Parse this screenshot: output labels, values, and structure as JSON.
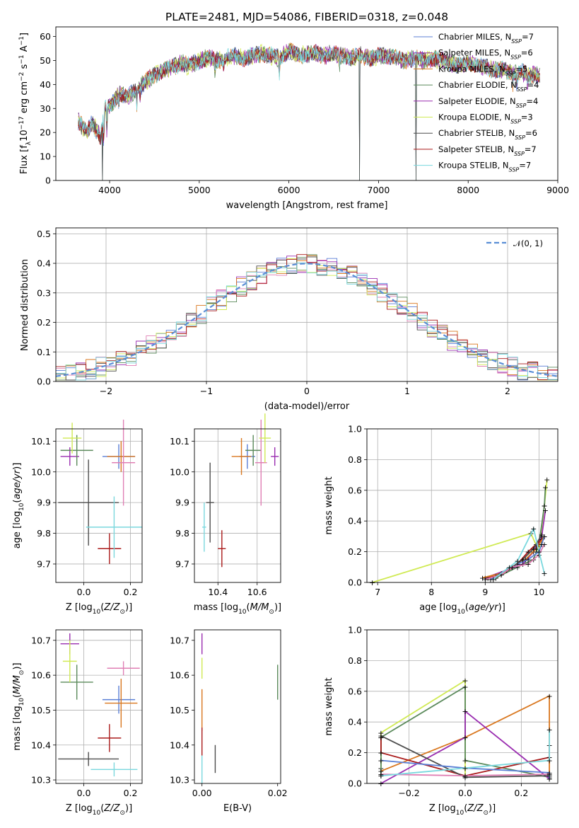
{
  "title": "PLATE=2481, MJD=54086, FIBERID=0318, z=0.048",
  "colors": {
    "Chabrier MILES": "#5b7fd6",
    "Salpeter MILES": "#9a2db0",
    "Kroupa MILES": "#d9771f",
    "Chabrier ELODIE": "#5b8a5b",
    "Salpeter ELODIE": "#9a2db0",
    "Kroupa ELODIE": "#d0ea54",
    "Chabrier STELIB": "#4d4d4d",
    "Salpeter STELIB": "#aa1a1a",
    "Kroupa STELIB": "#7ad8de",
    "Gaussian": "#5b8ed6",
    "Salpeter ELODIE panel": "#e07fb4"
  },
  "chart_data": [
    {
      "id": "spectrum",
      "type": "line",
      "title": "PLATE=2481, MJD=54086, FIBERID=0318, z=0.048",
      "xlabel": "wavelength [Angstrom, rest frame]",
      "ylabel": "Flux [f_λ10^-17 erg cm^-2 s^-1 A^-1]",
      "xlim": [
        3400,
        9000
      ],
      "ylim": [
        0,
        64
      ],
      "xticks": [
        "4000",
        "5000",
        "6000",
        "7000",
        "8000",
        "9000"
      ],
      "yticks": [
        "0",
        "10",
        "20",
        "30",
        "40",
        "50",
        "60"
      ],
      "grid": false,
      "legend_position": "top-right",
      "series": [
        {
          "name": "Chabrier MILES, N_SSP=7",
          "color": "#5b7fd6"
        },
        {
          "name": "Salpeter MILES, N_SSP=6",
          "color": "#9a2db0"
        },
        {
          "name": "Kroupa MILES, N_SSP=5",
          "color": "#d9771f"
        },
        {
          "name": "Chabrier ELODIE, N_SSP=4",
          "color": "#5b8a5b"
        },
        {
          "name": "Salpeter ELODIE, N_SSP=4",
          "color": "#9a2db0"
        },
        {
          "name": "Kroupa ELODIE, N_SSP=3",
          "color": "#d0ea54"
        },
        {
          "name": "Chabrier STELIB, N_SSP=6",
          "color": "#4d4d4d"
        },
        {
          "name": "Salpeter STELIB, N_SSP=7",
          "color": "#aa1a1a"
        },
        {
          "name": "Kroupa STELIB, N_SSP=7",
          "color": "#7ad8de"
        }
      ],
      "continuum": {
        "x": [
          3650,
          3700,
          3750,
          3800,
          3850,
          3900,
          3950,
          4000,
          4100,
          4200,
          4300,
          4400,
          4500,
          4600,
          4700,
          4800,
          4900,
          5000,
          5100,
          5200,
          5300,
          5400,
          5500,
          5600,
          5700,
          5800,
          5900,
          6000,
          6100,
          6200,
          6300,
          6400,
          6500,
          6600,
          6700,
          6800,
          6900,
          7000,
          7100,
          7200,
          7300,
          7400,
          7500,
          7600,
          7700,
          7800,
          7900,
          8000,
          8100,
          8200,
          8300,
          8400,
          8500,
          8600,
          8700,
          8800
        ],
        "y": [
          25,
          22,
          20,
          24,
          21,
          18,
          30,
          31,
          36,
          35,
          38,
          41,
          44,
          46,
          47,
          49,
          48,
          50,
          51,
          50,
          51,
          52,
          51,
          52,
          53,
          52,
          51,
          54,
          52,
          53,
          53,
          52,
          53,
          52,
          51,
          52,
          51,
          52,
          52,
          51,
          50,
          51,
          50,
          51,
          50,
          49,
          48,
          49,
          48,
          47,
          46,
          46,
          45,
          45,
          44,
          44
        ]
      },
      "dips": [
        {
          "x": 3920,
          "ylow": 0
        },
        {
          "x": 6790,
          "ylow": 0
        },
        {
          "x": 7420,
          "ylow": 0
        }
      ]
    },
    {
      "id": "residuals",
      "type": "step",
      "xlabel": "(data-model)/error",
      "ylabel": "Normed distribution",
      "xlim": [
        -2.5,
        2.5
      ],
      "ylim": [
        0,
        0.52
      ],
      "xticks": [
        "−2",
        "−1",
        "0",
        "1",
        "2"
      ],
      "yticks": [
        "0.0",
        "0.1",
        "0.2",
        "0.3",
        "0.4",
        "0.5"
      ],
      "grid": true,
      "legend_position": "top-right",
      "legend": "𝒩(0, 1)",
      "gaussian": {
        "mean": 0,
        "sigma": 1,
        "color": "#5b8ed6"
      }
    },
    {
      "id": "age_vs_Z",
      "type": "errorbar",
      "xlabel": "Z [log10(Z/Z☉)]",
      "ylabel": "age [log10(age/yr)]",
      "xlim": [
        -0.12,
        0.25
      ],
      "ylim": [
        9.64,
        10.14
      ],
      "xticks": [
        "0.0",
        "0.2"
      ],
      "xtick_values": [
        0.0,
        0.2
      ],
      "yticks": [
        "9.7",
        "9.8",
        "9.9",
        "10.0",
        "10.1"
      ],
      "ytick_values": [
        9.7,
        9.8,
        9.9,
        10.0,
        10.1
      ],
      "grid": true,
      "points": [
        {
          "x": 0.15,
          "y": 10.05,
          "xerr": 0.07,
          "yerr": 0.04,
          "color": "#5b7fd6"
        },
        {
          "x": -0.06,
          "y": 10.05,
          "xerr": 0.04,
          "yerr": 0.03,
          "color": "#9a2db0"
        },
        {
          "x": 0.16,
          "y": 10.05,
          "xerr": 0.06,
          "yerr": 0.05,
          "color": "#d9771f"
        },
        {
          "x": -0.03,
          "y": 10.07,
          "xerr": 0.07,
          "yerr": 0.05,
          "color": "#5b8a5b"
        },
        {
          "x": 0.17,
          "y": 10.03,
          "xerr": 0.05,
          "yerr": 0.14,
          "color": "#e07fb4"
        },
        {
          "x": -0.05,
          "y": 10.11,
          "xerr": 0.04,
          "yerr": 0.05,
          "color": "#d0ea54"
        },
        {
          "x": 0.02,
          "y": 9.9,
          "xerr": 0.13,
          "yerr": 0.14,
          "color": "#4d4d4d"
        },
        {
          "x": 0.11,
          "y": 9.75,
          "xerr": 0.05,
          "yerr": 0.05,
          "color": "#aa1a1a"
        },
        {
          "x": 0.13,
          "y": 9.82,
          "xerr": 0.12,
          "yerr": 0.1,
          "color": "#7ad8de"
        }
      ]
    },
    {
      "id": "age_vs_mass",
      "type": "errorbar",
      "xlabel": "mass [log10(M/M☉)]",
      "ylabel": "",
      "xlim": [
        10.28,
        10.72
      ],
      "ylim": [
        9.64,
        10.14
      ],
      "xticks": [
        "10.4",
        "10.6"
      ],
      "xtick_values": [
        10.4,
        10.6
      ],
      "yticks": [
        "9.7",
        "9.8",
        "9.9",
        "10.0",
        "10.1"
      ],
      "ytick_values": [
        9.7,
        9.8,
        9.9,
        10.0,
        10.1
      ],
      "grid": true,
      "points": [
        {
          "x": 10.55,
          "y": 10.05,
          "xerr": 0.04,
          "yerr": 0.04,
          "color": "#5b7fd6"
        },
        {
          "x": 10.69,
          "y": 10.05,
          "xerr": 0.02,
          "yerr": 0.03,
          "color": "#9a2db0"
        },
        {
          "x": 10.52,
          "y": 10.05,
          "xerr": 0.05,
          "yerr": 0.06,
          "color": "#d9771f"
        },
        {
          "x": 10.58,
          "y": 10.07,
          "xerr": 0.04,
          "yerr": 0.05,
          "color": "#5b8a5b"
        },
        {
          "x": 10.62,
          "y": 10.03,
          "xerr": 0.03,
          "yerr": 0.14,
          "color": "#e07fb4"
        },
        {
          "x": 10.64,
          "y": 10.11,
          "xerr": 0.03,
          "yerr": 0.08,
          "color": "#d0ea54"
        },
        {
          "x": 10.36,
          "y": 9.9,
          "xerr": 0.02,
          "yerr": 0.13,
          "color": "#4d4d4d"
        },
        {
          "x": 10.42,
          "y": 9.75,
          "xerr": 0.02,
          "yerr": 0.06,
          "color": "#aa1a1a"
        },
        {
          "x": 10.33,
          "y": 9.82,
          "xerr": 0.01,
          "yerr": 0.08,
          "color": "#7ad8de"
        }
      ]
    },
    {
      "id": "mass_weight_vs_age",
      "type": "line",
      "xlabel": "age [log10(age/yr)]",
      "ylabel": "mass weight",
      "xlim": [
        6.8,
        10.35
      ],
      "ylim": [
        0,
        1
      ],
      "xticks": [
        "7",
        "8",
        "9",
        "10"
      ],
      "xtick_values": [
        7,
        8,
        9,
        10
      ],
      "yticks": [
        "0.0",
        "0.2",
        "0.4",
        "0.6",
        "0.8",
        "1.0"
      ],
      "ytick_values": [
        0,
        0.2,
        0.4,
        0.6,
        0.8,
        1.0
      ],
      "grid": true,
      "series": [
        {
          "color": "#d0ea54",
          "x": [
            6.9,
            9.85,
            10.0,
            10.1,
            10.15
          ],
          "y": [
            0.0,
            0.32,
            0.2,
            0.5,
            0.67
          ]
        },
        {
          "color": "#5b8a5b",
          "x": [
            9.2,
            9.6,
            9.9,
            10.0,
            10.1,
            10.12
          ],
          "y": [
            0.03,
            0.1,
            0.15,
            0.25,
            0.5,
            0.62
          ]
        },
        {
          "color": "#9a2db0",
          "x": [
            9.0,
            9.4,
            9.7,
            9.9,
            10.05,
            10.12
          ],
          "y": [
            0.03,
            0.08,
            0.12,
            0.2,
            0.3,
            0.47
          ]
        },
        {
          "color": "#aa1a1a",
          "x": [
            9.05,
            9.3,
            9.6,
            9.8,
            9.95,
            10.05,
            10.1
          ],
          "y": [
            0.03,
            0.05,
            0.12,
            0.2,
            0.25,
            0.28,
            0.3
          ]
        },
        {
          "color": "#d9771f",
          "x": [
            8.95,
            9.3,
            9.5,
            9.75,
            9.95,
            10.1
          ],
          "y": [
            0.03,
            0.06,
            0.1,
            0.15,
            0.22,
            0.3
          ]
        },
        {
          "color": "#5b7fd6",
          "x": [
            9.1,
            9.4,
            9.6,
            9.8,
            10.0,
            10.05,
            10.1
          ],
          "y": [
            0.02,
            0.08,
            0.12,
            0.15,
            0.2,
            0.25,
            0.3
          ]
        },
        {
          "color": "#4d4d4d",
          "x": [
            9.2,
            9.5,
            9.7,
            9.9,
            10.05
          ],
          "y": [
            0.04,
            0.1,
            0.15,
            0.22,
            0.31
          ]
        },
        {
          "color": "#e07fb4",
          "x": [
            9.0,
            9.3,
            9.5,
            9.8,
            10.0,
            10.1
          ],
          "y": [
            0.02,
            0.05,
            0.1,
            0.12,
            0.18,
            0.25
          ]
        },
        {
          "color": "#7ad8de",
          "x": [
            9.15,
            9.45,
            9.6,
            9.9,
            10.0,
            10.1
          ],
          "y": [
            0.02,
            0.1,
            0.14,
            0.35,
            0.2,
            0.06
          ]
        }
      ]
    },
    {
      "id": "mass_vs_Z",
      "type": "errorbar",
      "xlabel": "Z [log10(Z/Z☉)]",
      "ylabel": "mass [log10(M/M☉)]",
      "xlim": [
        -0.12,
        0.25
      ],
      "ylim": [
        10.29,
        10.73
      ],
      "xticks": [
        "0.0",
        "0.2"
      ],
      "xtick_values": [
        0.0,
        0.2
      ],
      "yticks": [
        "10.3",
        "10.4",
        "10.5",
        "10.6",
        "10.7"
      ],
      "ytick_values": [
        10.3,
        10.4,
        10.5,
        10.6,
        10.7
      ],
      "grid": true,
      "points": [
        {
          "x": 0.15,
          "y": 10.53,
          "xerr": 0.07,
          "yerr": 0.04,
          "color": "#5b7fd6"
        },
        {
          "x": -0.06,
          "y": 10.69,
          "xerr": 0.04,
          "yerr": 0.03,
          "color": "#9a2db0"
        },
        {
          "x": 0.16,
          "y": 10.52,
          "xerr": 0.07,
          "yerr": 0.07,
          "color": "#d9771f"
        },
        {
          "x": -0.03,
          "y": 10.58,
          "xerr": 0.07,
          "yerr": 0.05,
          "color": "#5b8a5b"
        },
        {
          "x": 0.17,
          "y": 10.62,
          "xerr": 0.07,
          "yerr": 0.02,
          "color": "#e07fb4"
        },
        {
          "x": -0.06,
          "y": 10.64,
          "xerr": 0.03,
          "yerr": 0.06,
          "color": "#d0ea54"
        },
        {
          "x": 0.02,
          "y": 10.36,
          "xerr": 0.13,
          "yerr": 0.02,
          "color": "#4d4d4d"
        },
        {
          "x": 0.11,
          "y": 10.42,
          "xerr": 0.05,
          "yerr": 0.04,
          "color": "#aa1a1a"
        },
        {
          "x": 0.13,
          "y": 10.33,
          "xerr": 0.1,
          "yerr": 0.02,
          "color": "#7ad8de"
        }
      ]
    },
    {
      "id": "mass_vs_EBV",
      "type": "errorbar",
      "xlabel": "E(B-V)",
      "ylabel": "",
      "xlim": [
        -0.002,
        0.0208
      ],
      "ylim": [
        10.29,
        10.73
      ],
      "xticks": [
        "0.00",
        "0.02"
      ],
      "xtick_values": [
        0.0,
        0.02
      ],
      "yticks": [
        "10.3",
        "10.4",
        "10.5",
        "10.6",
        "10.7"
      ],
      "ytick_values": [
        10.3,
        10.4,
        10.5,
        10.6,
        10.7
      ],
      "grid": false,
      "points": [
        {
          "x": 0.0,
          "y": 10.69,
          "xerr": 0,
          "yerr": 0.03,
          "color": "#9a2db0"
        },
        {
          "x": 0.0,
          "y": 10.62,
          "xerr": 0,
          "yerr": 0.03,
          "color": "#d0ea54"
        },
        {
          "x": 0.0,
          "y": 10.5,
          "xerr": 0,
          "yerr": 0.06,
          "color": "#d9771f"
        },
        {
          "x": 0.0,
          "y": 10.41,
          "xerr": 0,
          "yerr": 0.04,
          "color": "#aa1a1a"
        },
        {
          "x": 0.0,
          "y": 10.33,
          "xerr": 0,
          "yerr": 0.04,
          "color": "#7ad8de"
        },
        {
          "x": 0.0035,
          "y": 10.36,
          "xerr": 0,
          "yerr": 0.04,
          "color": "#4d4d4d"
        },
        {
          "x": 0.02,
          "y": 10.58,
          "xerr": 0,
          "yerr": 0.05,
          "color": "#5b8a5b"
        }
      ]
    },
    {
      "id": "mass_weight_vs_Z",
      "type": "line",
      "xlabel": "Z [log10(Z/Z☉)]",
      "ylabel": "mass weight",
      "xlim": [
        -0.35,
        0.33
      ],
      "ylim": [
        0,
        1
      ],
      "xticks": [
        "−0.2",
        "0.0",
        "0.2"
      ],
      "xtick_values": [
        -0.2,
        0.0,
        0.2
      ],
      "yticks": [
        "0.0",
        "0.2",
        "0.4",
        "0.6",
        "0.8",
        "1.0"
      ],
      "ytick_values": [
        0,
        0.2,
        0.4,
        0.6,
        0.8,
        1.0
      ],
      "grid": true,
      "series": [
        {
          "color": "#d0ea54",
          "x": [
            -0.3,
            -0.3,
            0.0,
            0.0
          ],
          "y": [
            0.1,
            0.33,
            0.67,
            0.05
          ]
        },
        {
          "color": "#5b8a5b",
          "x": [
            -0.3,
            -0.3,
            0.0,
            0.0,
            0.3
          ],
          "y": [
            0.05,
            0.3,
            0.63,
            0.15,
            0.04
          ]
        },
        {
          "color": "#d9771f",
          "x": [
            -0.3,
            0.0,
            0.3,
            0.3
          ],
          "y": [
            0.08,
            0.3,
            0.57,
            0.05
          ]
        },
        {
          "color": "#9a2db0",
          "x": [
            -0.3,
            0.0,
            0.0,
            0.3
          ],
          "y": [
            0.0,
            0.3,
            0.47,
            0.03
          ]
        },
        {
          "color": "#aa1a1a",
          "x": [
            -0.3,
            -0.3,
            0.0,
            0.3,
            0.3
          ],
          "y": [
            0.3,
            0.2,
            0.05,
            0.17,
            0.25
          ]
        },
        {
          "color": "#4d4d4d",
          "x": [
            -0.3,
            0.0,
            0.3
          ],
          "y": [
            0.31,
            0.04,
            0.05
          ]
        },
        {
          "color": "#5b7fd6",
          "x": [
            -0.3,
            0.0,
            0.3,
            0.3
          ],
          "y": [
            0.15,
            0.1,
            0.07,
            0.03
          ]
        },
        {
          "color": "#e07fb4",
          "x": [
            -0.3,
            0.0,
            0.3
          ],
          "y": [
            0.06,
            0.05,
            0.06
          ]
        },
        {
          "color": "#7ad8de",
          "x": [
            -0.3,
            0.0,
            0.3,
            0.3
          ],
          "y": [
            0.05,
            0.1,
            0.15,
            0.35
          ]
        }
      ]
    }
  ]
}
